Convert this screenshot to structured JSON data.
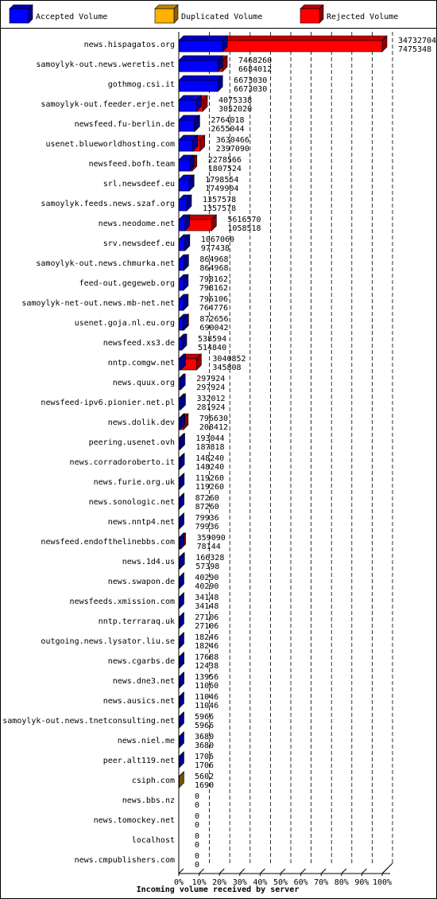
{
  "legend": [
    {
      "label": "Accepted Volume",
      "color": "#0000ff"
    },
    {
      "label": "Duplicated Volume",
      "color": "#ffb000"
    },
    {
      "label": "Rejected Volume",
      "color": "#ff0000"
    }
  ],
  "chart_data": {
    "type": "bar",
    "orientation": "horizontal",
    "stacked": "overlaid",
    "title": "",
    "xlabel": "Incoming volume received by server",
    "ylabel": "",
    "xlim": [
      0,
      100
    ],
    "ticks": [
      "0%",
      "10%",
      "20%",
      "30%",
      "40%",
      "50%",
      "60%",
      "70%",
      "80%",
      "90%",
      "100%"
    ],
    "grid": true,
    "legend_position": "top",
    "max_value": 34732704,
    "rows": [
      {
        "name": "news.hispagatos.org",
        "v1": 34732704,
        "v2": 7475348
      },
      {
        "name": "samoylyk-out.news.weretis.net",
        "v1": 7468260,
        "v2": 6684012
      },
      {
        "name": "gothmog.csi.it",
        "v1": 6673030,
        "v2": 6673030
      },
      {
        "name": "samoylyk-out.feeder.erje.net",
        "v1": 4075338,
        "v2": 3052020
      },
      {
        "name": "newsfeed.fu-berlin.de",
        "v1": 2764018,
        "v2": 2655044
      },
      {
        "name": "usenet.blueworldhosting.com",
        "v1": 3630466,
        "v2": 2397090
      },
      {
        "name": "newsfeed.bofh.team",
        "v1": 2278566,
        "v2": 1807524
      },
      {
        "name": "srl.newsdeef.eu",
        "v1": 1798554,
        "v2": 1749904
      },
      {
        "name": "samoylyk.feeds.news.szaf.org",
        "v1": 1357578,
        "v2": 1357578
      },
      {
        "name": "news.neodome.net",
        "v1": 5616570,
        "v2": 1058518
      },
      {
        "name": "srv.newsdeef.eu",
        "v1": 1067060,
        "v2": 977438
      },
      {
        "name": "samoylyk-out.news.chmurka.net",
        "v1": 864968,
        "v2": 864968
      },
      {
        "name": "feed-out.gegeweb.org",
        "v1": 798162,
        "v2": 798162
      },
      {
        "name": "samoylyk-net-out.news.mb-net.net",
        "v1": 796106,
        "v2": 764776
      },
      {
        "name": "usenet.goja.nl.eu.org",
        "v1": 872656,
        "v2": 690042
      },
      {
        "name": "newsfeed.xs3.de",
        "v1": 538594,
        "v2": 514840
      },
      {
        "name": "nntp.comgw.net",
        "v1": 3040852,
        "v2": 345808
      },
      {
        "name": "news.quux.org",
        "v1": 297924,
        "v2": 297924
      },
      {
        "name": "newsfeed-ipv6.pionier.net.pl",
        "v1": 332012,
        "v2": 281924
      },
      {
        "name": "news.dolik.dev",
        "v1": 796630,
        "v2": 208412
      },
      {
        "name": "peering.usenet.ovh",
        "v1": 193044,
        "v2": 187818
      },
      {
        "name": "news.corradoroberto.it",
        "v1": 148240,
        "v2": 148240
      },
      {
        "name": "news.furie.org.uk",
        "v1": 119260,
        "v2": 119260
      },
      {
        "name": "news.sonologic.net",
        "v1": 87260,
        "v2": 87260
      },
      {
        "name": "news.nntp4.net",
        "v1": 79936,
        "v2": 79936
      },
      {
        "name": "newsfeed.endofthelinebbs.com",
        "v1": 359090,
        "v2": 78144
      },
      {
        "name": "news.1d4.us",
        "v1": 166328,
        "v2": 57398
      },
      {
        "name": "news.swapon.de",
        "v1": 40290,
        "v2": 40290
      },
      {
        "name": "newsfeeds.xmission.com",
        "v1": 34148,
        "v2": 34148
      },
      {
        "name": "nntp.terraraq.uk",
        "v1": 27106,
        "v2": 27106
      },
      {
        "name": "outgoing.news.lysator.liu.se",
        "v1": 18246,
        "v2": 18246
      },
      {
        "name": "news.cgarbs.de",
        "v1": 17688,
        "v2": 12438
      },
      {
        "name": "news.dne3.net",
        "v1": 13956,
        "v2": 11060
      },
      {
        "name": "news.ausics.net",
        "v1": 11046,
        "v2": 11046
      },
      {
        "name": "samoylyk-out.news.tnetconsulting.net",
        "v1": 5966,
        "v2": 5966
      },
      {
        "name": "news.niel.me",
        "v1": 3680,
        "v2": 3680
      },
      {
        "name": "peer.alt119.net",
        "v1": 1706,
        "v2": 1706
      },
      {
        "name": "csiph.com",
        "v1": 5602,
        "v2": 1690,
        "duplicated": true
      },
      {
        "name": "news.bbs.nz",
        "v1": 0,
        "v2": 0
      },
      {
        "name": "news.tomockey.net",
        "v1": 0,
        "v2": 0
      },
      {
        "name": "localhost",
        "v1": 0,
        "v2": 0
      },
      {
        "name": "news.cmpublishers.com",
        "v1": 0,
        "v2": 0
      }
    ]
  }
}
